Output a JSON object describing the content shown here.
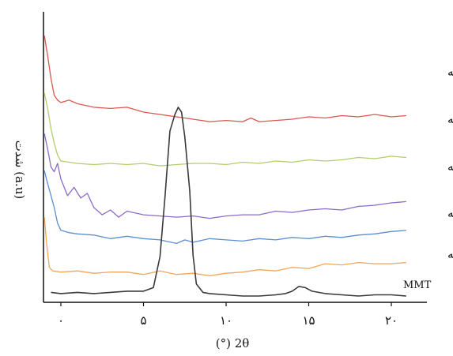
{
  "chart_data": {
    "type": "line",
    "title": "",
    "xlabel": "(°) 2θ",
    "ylabel": "شدت (a.u)",
    "xlim": [
      -1,
      21
    ],
    "ylim": [
      0,
      23
    ],
    "xticks": [
      0,
      5,
      10,
      15,
      20
    ],
    "xtick_labels": [
      "۰",
      "۵",
      "۱۰",
      "۱۵",
      "۲۰"
    ],
    "grid": false,
    "legend": "inline labels at right",
    "series": [
      {
        "name": "MMT ۰٪ - نشاسته",
        "color": "#d9584e",
        "points": [
          [
            -1,
            22.0
          ],
          [
            -0.8,
            20.3
          ],
          [
            -0.6,
            18.4
          ],
          [
            -0.4,
            17.0
          ],
          [
            -0.2,
            16.6
          ],
          [
            0,
            16.4
          ],
          [
            0.5,
            16.6
          ],
          [
            1,
            16.3
          ],
          [
            2,
            16.0
          ],
          [
            3,
            15.9
          ],
          [
            4,
            16.0
          ],
          [
            5,
            15.6
          ],
          [
            6,
            15.4
          ],
          [
            7,
            15.2
          ],
          [
            8,
            15.0
          ],
          [
            9,
            14.8
          ],
          [
            10,
            14.9
          ],
          [
            11,
            14.8
          ],
          [
            11.5,
            15.1
          ],
          [
            12,
            14.8
          ],
          [
            13,
            14.9
          ],
          [
            14,
            15.0
          ],
          [
            15,
            15.2
          ],
          [
            16,
            15.1
          ],
          [
            17,
            15.3
          ],
          [
            18,
            15.2
          ],
          [
            19,
            15.4
          ],
          [
            20,
            15.2
          ],
          [
            20.9,
            15.3
          ]
        ]
      },
      {
        "name": "MMT ۹٪ - نشاسته",
        "color": "#b3cc6e",
        "points": [
          [
            -1,
            17.2
          ],
          [
            -0.8,
            15.9
          ],
          [
            -0.6,
            14.2
          ],
          [
            -0.4,
            13.0
          ],
          [
            -0.2,
            12.0
          ],
          [
            0,
            11.5
          ],
          [
            1,
            11.3
          ],
          [
            2,
            11.2
          ],
          [
            3,
            11.3
          ],
          [
            4,
            11.2
          ],
          [
            5,
            11.3
          ],
          [
            6,
            11.1
          ],
          [
            7,
            11.2
          ],
          [
            8,
            11.3
          ],
          [
            9,
            11.3
          ],
          [
            10,
            11.2
          ],
          [
            11,
            11.4
          ],
          [
            12,
            11.3
          ],
          [
            13,
            11.5
          ],
          [
            14,
            11.4
          ],
          [
            15,
            11.6
          ],
          [
            16,
            11.5
          ],
          [
            17,
            11.6
          ],
          [
            18,
            11.8
          ],
          [
            19,
            11.7
          ],
          [
            20,
            11.9
          ],
          [
            20.9,
            11.8
          ]
        ]
      },
      {
        "name": "MMT ۳٪ - نشاسته",
        "color": "#8a6bc7",
        "points": [
          [
            -1,
            13.8
          ],
          [
            -0.8,
            12.5
          ],
          [
            -0.6,
            11.0
          ],
          [
            -0.4,
            10.6
          ],
          [
            -0.2,
            11.3
          ],
          [
            0,
            10.0
          ],
          [
            0.4,
            8.6
          ],
          [
            0.8,
            9.3
          ],
          [
            1.2,
            8.4
          ],
          [
            1.6,
            8.8
          ],
          [
            2,
            7.6
          ],
          [
            2.5,
            7.0
          ],
          [
            3,
            7.4
          ],
          [
            3.5,
            6.8
          ],
          [
            4,
            7.3
          ],
          [
            5,
            7.0
          ],
          [
            6,
            6.9
          ],
          [
            7,
            6.8
          ],
          [
            8,
            6.9
          ],
          [
            9,
            6.7
          ],
          [
            10,
            6.9
          ],
          [
            11,
            7.0
          ],
          [
            12,
            7.0
          ],
          [
            13,
            7.3
          ],
          [
            14,
            7.2
          ],
          [
            15,
            7.4
          ],
          [
            16,
            7.5
          ],
          [
            17,
            7.4
          ],
          [
            18,
            7.7
          ],
          [
            19,
            7.8
          ],
          [
            20,
            8.0
          ],
          [
            20.9,
            8.1
          ]
        ]
      },
      {
        "name": "MMT ۵٪ - نشاسته",
        "color": "#5b8fd1",
        "points": [
          [
            -1,
            10.7
          ],
          [
            -0.8,
            9.6
          ],
          [
            -0.6,
            8.6
          ],
          [
            -0.4,
            7.6
          ],
          [
            -0.2,
            6.3
          ],
          [
            0,
            5.7
          ],
          [
            0.5,
            5.5
          ],
          [
            1,
            5.4
          ],
          [
            2,
            5.3
          ],
          [
            3,
            5.0
          ],
          [
            4,
            5.2
          ],
          [
            5,
            5.0
          ],
          [
            6,
            4.9
          ],
          [
            7,
            4.6
          ],
          [
            7.5,
            4.9
          ],
          [
            8,
            4.7
          ],
          [
            9,
            5.0
          ],
          [
            10,
            4.9
          ],
          [
            11,
            4.8
          ],
          [
            12,
            5.0
          ],
          [
            13,
            4.9
          ],
          [
            14,
            5.1
          ],
          [
            15,
            5.0
          ],
          [
            16,
            5.2
          ],
          [
            17,
            5.1
          ],
          [
            18,
            5.3
          ],
          [
            19,
            5.4
          ],
          [
            20,
            5.6
          ],
          [
            20.9,
            5.7
          ]
        ]
      },
      {
        "name": "MMT ۷٪ - نشاسته",
        "color": "#f0a65a",
        "points": [
          [
            -1,
            6.8
          ],
          [
            -0.85,
            4.4
          ],
          [
            -0.7,
            2.6
          ],
          [
            -0.5,
            2.3
          ],
          [
            0,
            2.2
          ],
          [
            1,
            2.3
          ],
          [
            2,
            2.1
          ],
          [
            3,
            2.2
          ],
          [
            4,
            2.2
          ],
          [
            5,
            2.0
          ],
          [
            6,
            2.3
          ],
          [
            7,
            2.0
          ],
          [
            8,
            2.1
          ],
          [
            9,
            1.9
          ],
          [
            10,
            2.1
          ],
          [
            11,
            2.2
          ],
          [
            12,
            2.4
          ],
          [
            13,
            2.3
          ],
          [
            14,
            2.6
          ],
          [
            15,
            2.5
          ],
          [
            16,
            2.9
          ],
          [
            17,
            2.8
          ],
          [
            18,
            3.0
          ],
          [
            19,
            2.9
          ],
          [
            20,
            2.9
          ],
          [
            20.9,
            3.0
          ]
        ]
      },
      {
        "name": "MMT",
        "color": "#3a3a3a",
        "points": [
          [
            -0.6,
            0.5
          ],
          [
            0,
            0.4
          ],
          [
            1,
            0.5
          ],
          [
            2,
            0.4
          ],
          [
            3,
            0.5
          ],
          [
            4,
            0.6
          ],
          [
            5,
            0.6
          ],
          [
            5.6,
            0.9
          ],
          [
            6,
            3.5
          ],
          [
            6.3,
            8.5
          ],
          [
            6.6,
            14.0
          ],
          [
            6.9,
            15.4
          ],
          [
            7.1,
            16.0
          ],
          [
            7.3,
            15.6
          ],
          [
            7.5,
            13.5
          ],
          [
            7.8,
            9.0
          ],
          [
            8.0,
            3.6
          ],
          [
            8.2,
            1.2
          ],
          [
            8.6,
            0.5
          ],
          [
            9,
            0.4
          ],
          [
            10,
            0.3
          ],
          [
            11,
            0.2
          ],
          [
            12,
            0.2
          ],
          [
            13,
            0.3
          ],
          [
            13.6,
            0.4
          ],
          [
            14.0,
            0.6
          ],
          [
            14.4,
            1.0
          ],
          [
            14.8,
            0.9
          ],
          [
            15.2,
            0.6
          ],
          [
            16,
            0.4
          ],
          [
            17,
            0.3
          ],
          [
            18,
            0.2
          ],
          [
            19,
            0.3
          ],
          [
            20,
            0.3
          ],
          [
            20.9,
            0.2
          ]
        ]
      }
    ]
  }
}
